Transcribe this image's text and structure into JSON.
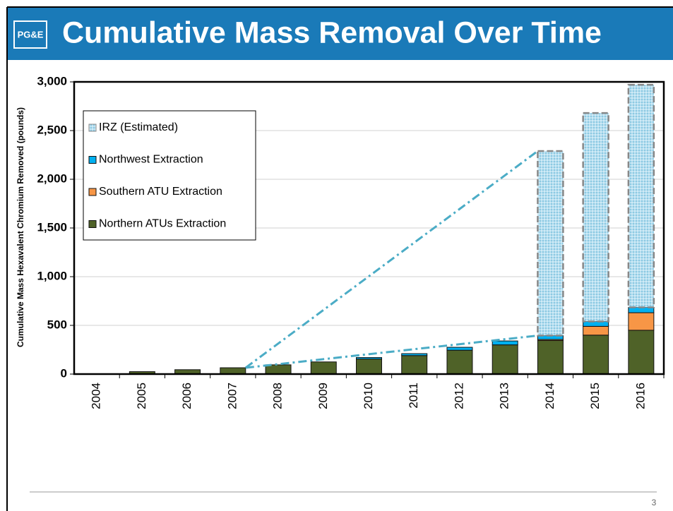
{
  "header": {
    "logo": "PG&E",
    "title": "Cumulative Mass Removal Over Time"
  },
  "chart_data": {
    "type": "stacked_bar",
    "y_label": "Cumulative Mass Hexavalent Chromium Removed (pounds)",
    "categories": [
      "2004",
      "2005",
      "2006",
      "2007",
      "2008",
      "2009",
      "2010",
      "2011",
      "2012",
      "2013",
      "2014",
      "2015",
      "2016"
    ],
    "series": [
      {
        "name": "Northern ATUs Extraction",
        "color": "#4f6228",
        "values": [
          2,
          25,
          45,
          65,
          95,
          125,
          155,
          190,
          245,
          300,
          345,
          400,
          450
        ]
      },
      {
        "name": "Southern ATU Extraction",
        "color": "#f79646",
        "values": [
          0,
          0,
          0,
          0,
          0,
          0,
          0,
          0,
          0,
          0,
          10,
          90,
          180
        ]
      },
      {
        "name": "Northwest Extraction",
        "color": "#00b0f0",
        "values": [
          0,
          0,
          0,
          0,
          0,
          0,
          15,
          20,
          30,
          40,
          40,
          50,
          55
        ]
      },
      {
        "name": "IRZ (Estimated)",
        "color": "#b7dff0",
        "values": [
          0,
          0,
          0,
          0,
          0,
          0,
          0,
          0,
          0,
          0,
          1895,
          2140,
          2285
        ]
      }
    ],
    "ylim": [
      0,
      3000
    ],
    "yticks": [
      0,
      500,
      {
        "value": 1000,
        "label": "1,000"
      },
      {
        "value": 1500,
        "label": "1,500"
      },
      {
        "value": 2000,
        "label": "2,000"
      },
      {
        "value": 2500,
        "label": "2,500"
      },
      {
        "value": 3000,
        "label": "3,000"
      }
    ],
    "grid": true,
    "legend": "upper left"
  },
  "footer": {
    "page": "3"
  }
}
